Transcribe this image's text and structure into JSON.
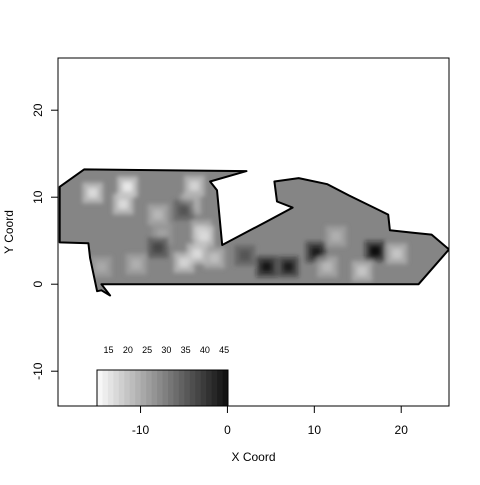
{
  "chart_data": {
    "type": "heatmap",
    "title": "",
    "xlabel": "X Coord",
    "ylabel": "Y Coord",
    "xlim": [
      -19.5,
      25.5
    ],
    "ylim": [
      -14,
      26
    ],
    "x_ticks": [
      -10,
      0,
      10,
      20
    ],
    "y_ticks": [
      -10,
      0,
      10,
      20
    ],
    "x_tick_labels": [
      "-10",
      "0",
      "10",
      "20"
    ],
    "y_tick_labels": [
      "-10",
      "0",
      "10",
      "20"
    ],
    "grid": false,
    "background_value": 29,
    "boundary": [
      [
        -19.3,
        11.2
      ],
      [
        -16.5,
        13.2
      ],
      [
        2.2,
        13
      ],
      [
        -2,
        11.8
      ],
      [
        -1.2,
        10.8
      ],
      [
        -0.6,
        4.5
      ],
      [
        4.5,
        7.2
      ],
      [
        7.5,
        8.8
      ],
      [
        5.7,
        9.5
      ],
      [
        5.4,
        11.8
      ],
      [
        8.2,
        12.2
      ],
      [
        11.5,
        11.5
      ],
      [
        14,
        10.2
      ],
      [
        18.5,
        8
      ],
      [
        18.7,
        6.2
      ],
      [
        21.5,
        5.9
      ],
      [
        23.5,
        5.7
      ],
      [
        25.5,
        4
      ],
      [
        22,
        0
      ],
      [
        0,
        0
      ],
      [
        -14.5,
        0
      ],
      [
        -13.5,
        -1.3
      ],
      [
        -14.5,
        -0.7
      ],
      [
        -15,
        -0.8
      ],
      [
        -15.8,
        3
      ],
      [
        -16,
        4.7
      ],
      [
        -19.3,
        4.8
      ]
    ],
    "cells": [
      {
        "x": -15.5,
        "y": 10.5,
        "v": 17
      },
      {
        "x": -11.5,
        "y": 11.2,
        "v": 15
      },
      {
        "x": -12,
        "y": 9.2,
        "v": 17
      },
      {
        "x": -8,
        "y": 8,
        "v": 22
      },
      {
        "x": -3.8,
        "y": 11.3,
        "v": 18
      },
      {
        "x": -4.2,
        "y": 9.2,
        "v": 21
      },
      {
        "x": -5,
        "y": 8.5,
        "v": 36
      },
      {
        "x": -3,
        "y": 6.2,
        "v": 21
      },
      {
        "x": -7.5,
        "y": 5.8,
        "v": 25
      },
      {
        "x": -2.7,
        "y": 5.5,
        "v": 17
      },
      {
        "x": -8,
        "y": 4.2,
        "v": 38
      },
      {
        "x": -3.5,
        "y": 3.5,
        "v": 17
      },
      {
        "x": -5,
        "y": 2.5,
        "v": 18
      },
      {
        "x": -10.5,
        "y": 2.3,
        "v": 23
      },
      {
        "x": -14.5,
        "y": 2,
        "v": 24
      },
      {
        "x": -1.5,
        "y": 3,
        "v": 21
      },
      {
        "x": 2,
        "y": 3.3,
        "v": 36
      },
      {
        "x": 4.5,
        "y": 2,
        "v": 45
      },
      {
        "x": 7,
        "y": 2,
        "v": 44
      },
      {
        "x": 10.2,
        "y": 3.7,
        "v": 44
      },
      {
        "x": 12.5,
        "y": 5.5,
        "v": 23
      },
      {
        "x": 11.5,
        "y": 2,
        "v": 22
      },
      {
        "x": 17,
        "y": 3.8,
        "v": 46
      },
      {
        "x": 19.5,
        "y": 3.5,
        "v": 20
      },
      {
        "x": 15.5,
        "y": 1.5,
        "v": 20
      }
    ],
    "legend": {
      "placement": "bottom-left",
      "labels": [
        "15",
        "20",
        "25",
        "30",
        "35",
        "40",
        "45"
      ],
      "values": [
        15,
        20,
        25,
        30,
        35,
        40,
        45
      ],
      "range": [
        12,
        46
      ]
    }
  }
}
